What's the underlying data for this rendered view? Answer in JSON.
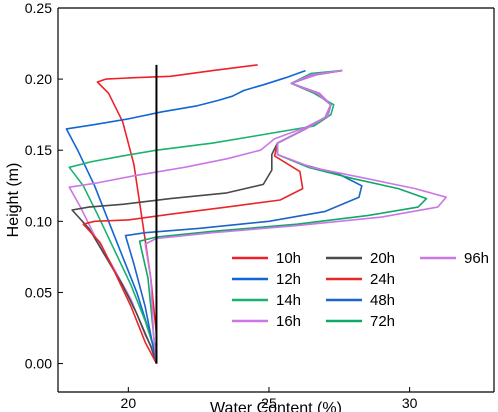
{
  "chart_data": {
    "type": "line",
    "title": "",
    "xlabel": "Water Content (%)",
    "ylabel": "Height (m)",
    "xlim": [
      17.5,
      33.0
    ],
    "ylim": [
      -0.02,
      0.25
    ],
    "x_ticks": [
      20,
      25,
      30
    ],
    "x_tick_labels": [
      "20",
      "25",
      "30"
    ],
    "y_ticks": [
      0.0,
      0.05,
      0.1,
      0.15,
      0.2,
      0.25
    ],
    "y_tick_labels": [
      "0.00",
      "0.05",
      "0.10",
      "0.15",
      "0.20",
      "0.25"
    ],
    "grid": false,
    "legend": "bottom-right, two columns",
    "initial_line": {
      "x": 21.0,
      "y_range": [
        0.0,
        0.21
      ],
      "color": "#000000"
    },
    "series": [
      {
        "name": "10h",
        "color": "#f0202a",
        "x": [
          24.6,
          23.0,
          21.5,
          20.2,
          19.2,
          18.9,
          19.3,
          19.8,
          20.2,
          20.5,
          20.8,
          21.0,
          21.0
        ],
        "y": [
          0.21,
          0.206,
          0.202,
          0.201,
          0.2,
          0.198,
          0.19,
          0.17,
          0.14,
          0.1,
          0.06,
          0.02,
          0.0
        ]
      },
      {
        "name": "12h",
        "color": "#1166d6",
        "x": [
          26.3,
          25.6,
          24.8,
          24.1,
          23.7,
          23.2,
          22.4,
          21.2,
          20.0,
          18.8,
          17.8,
          18.2,
          18.8,
          19.3,
          19.8,
          20.3,
          20.7,
          21.0,
          21.0
        ],
        "y": [
          0.206,
          0.201,
          0.196,
          0.192,
          0.188,
          0.185,
          0.181,
          0.177,
          0.172,
          0.168,
          0.165,
          0.15,
          0.125,
          0.1,
          0.075,
          0.05,
          0.025,
          0.005,
          0.0
        ]
      },
      {
        "name": "14h",
        "color": "#18b46e",
        "x": [
          27.6,
          26.5,
          25.8,
          26.6,
          27.3,
          27.2,
          26.6,
          24.5,
          23.0,
          21.0,
          19.8,
          18.7,
          17.9,
          18.4,
          18.9,
          19.5,
          20.1,
          20.6,
          21.0,
          21.0
        ],
        "y": [
          0.206,
          0.204,
          0.197,
          0.19,
          0.182,
          0.175,
          0.167,
          0.16,
          0.155,
          0.15,
          0.146,
          0.142,
          0.138,
          0.125,
          0.105,
          0.08,
          0.055,
          0.03,
          0.005,
          0.0
        ]
      },
      {
        "name": "16h",
        "color": "#cc77e6",
        "x": [
          27.6,
          26.7,
          25.8,
          26.8,
          27.2,
          27.1,
          26.3,
          25.2,
          24.7,
          23.5,
          22.0,
          20.2,
          18.9,
          17.9,
          18.3,
          18.8,
          19.4,
          20.1,
          20.6,
          21.0,
          21.0
        ],
        "y": [
          0.206,
          0.203,
          0.197,
          0.19,
          0.182,
          0.174,
          0.166,
          0.158,
          0.15,
          0.144,
          0.138,
          0.132,
          0.127,
          0.124,
          0.11,
          0.09,
          0.07,
          0.045,
          0.02,
          0.005,
          0.0
        ]
      },
      {
        "name": "20h",
        "color": "#4a4a4a",
        "x": [
          27.6,
          26.5,
          25.8,
          26.7,
          27.2,
          27.0,
          26.3,
          25.3,
          25.1,
          25.1,
          24.8,
          23.5,
          21.5,
          19.8,
          18.6,
          18.0,
          18.6,
          19.2,
          19.8,
          20.3,
          20.8,
          21.0
        ],
        "y": [
          0.206,
          0.203,
          0.197,
          0.19,
          0.182,
          0.173,
          0.165,
          0.155,
          0.147,
          0.136,
          0.126,
          0.12,
          0.116,
          0.112,
          0.11,
          0.108,
          0.095,
          0.075,
          0.055,
          0.035,
          0.012,
          0.0
        ]
      },
      {
        "name": "24h",
        "color": "#e82828",
        "x": [
          27.6,
          26.5,
          25.8,
          26.7,
          27.2,
          27.0,
          26.3,
          25.3,
          25.2,
          26.1,
          26.2,
          25.4,
          23.5,
          21.5,
          20.0,
          18.8,
          18.4,
          19.0,
          19.5,
          20.1,
          20.6,
          21.0
        ],
        "y": [
          0.206,
          0.203,
          0.197,
          0.19,
          0.182,
          0.173,
          0.165,
          0.155,
          0.146,
          0.135,
          0.123,
          0.115,
          0.11,
          0.105,
          0.101,
          0.1,
          0.098,
          0.085,
          0.065,
          0.04,
          0.015,
          0.0
        ]
      },
      {
        "name": "48h",
        "color": "#1e64c8",
        "x": [
          27.6,
          26.5,
          25.8,
          26.7,
          27.2,
          27.0,
          26.3,
          25.3,
          25.3,
          26.2,
          27.5,
          28.3,
          28.2,
          27.0,
          25.0,
          22.5,
          20.6,
          19.9,
          20.2,
          20.6,
          20.9,
          21.0
        ],
        "y": [
          0.206,
          0.203,
          0.197,
          0.19,
          0.182,
          0.173,
          0.165,
          0.155,
          0.147,
          0.14,
          0.133,
          0.125,
          0.117,
          0.107,
          0.1,
          0.095,
          0.092,
          0.09,
          0.07,
          0.04,
          0.01,
          0.0
        ]
      },
      {
        "name": "72h",
        "color": "#10a868",
        "x": [
          27.6,
          26.5,
          25.8,
          26.7,
          27.2,
          27.0,
          26.3,
          25.3,
          25.3,
          26.4,
          28.0,
          29.6,
          30.6,
          30.3,
          28.5,
          26.0,
          23.0,
          21.0,
          20.4,
          20.7,
          20.9,
          21.0
        ],
        "y": [
          0.206,
          0.203,
          0.197,
          0.19,
          0.182,
          0.173,
          0.165,
          0.155,
          0.147,
          0.138,
          0.13,
          0.123,
          0.116,
          0.11,
          0.104,
          0.098,
          0.093,
          0.089,
          0.086,
          0.06,
          0.02,
          0.0
        ]
      },
      {
        "name": "96h",
        "color": "#cc77e6",
        "x": [
          27.6,
          26.5,
          25.8,
          26.7,
          27.2,
          27.0,
          26.3,
          25.3,
          25.3,
          26.5,
          28.5,
          30.2,
          31.3,
          31.0,
          29.0,
          26.0,
          23.0,
          21.0,
          20.6,
          20.8,
          20.9,
          21.0
        ],
        "y": [
          0.206,
          0.203,
          0.197,
          0.19,
          0.182,
          0.173,
          0.165,
          0.155,
          0.147,
          0.138,
          0.13,
          0.123,
          0.117,
          0.11,
          0.103,
          0.097,
          0.092,
          0.088,
          0.084,
          0.06,
          0.02,
          0.0
        ]
      }
    ]
  }
}
